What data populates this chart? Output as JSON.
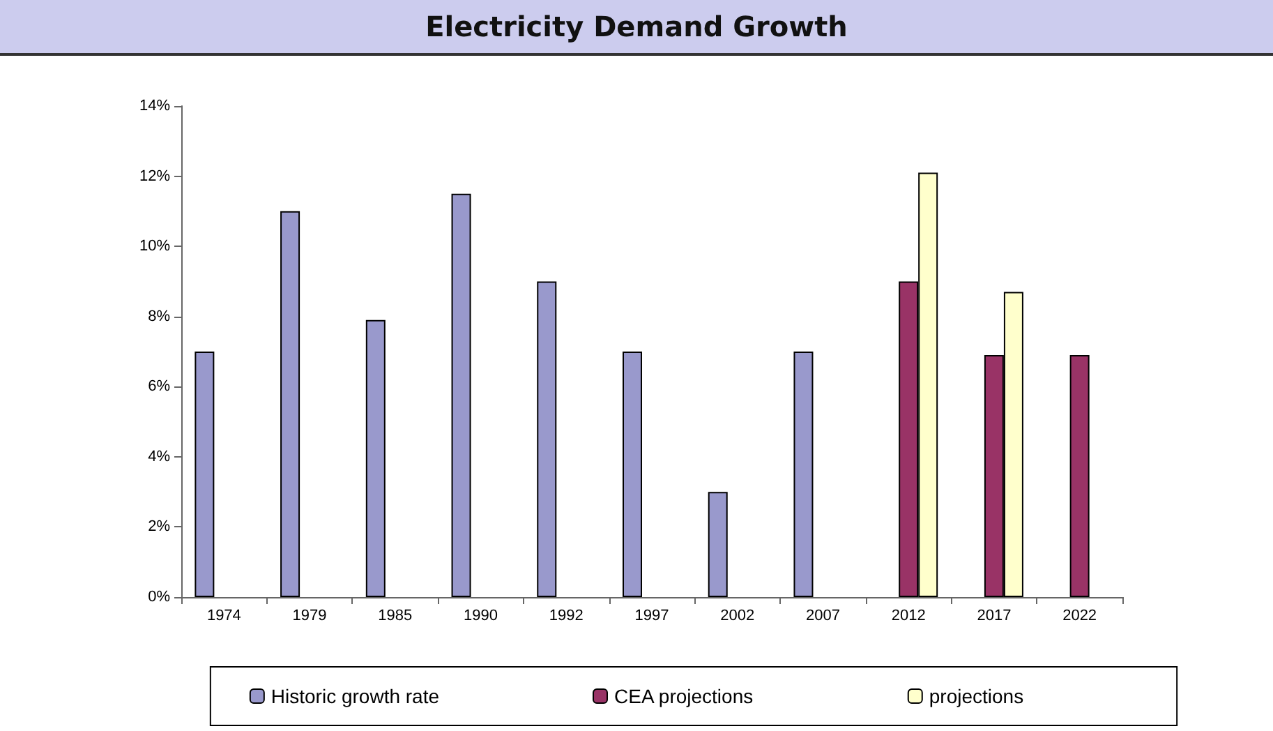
{
  "chart_data": {
    "type": "bar",
    "title": "Electricity Demand Growth",
    "categories": [
      "1974",
      "1979",
      "1985",
      "1990",
      "1992",
      "1997",
      "2002",
      "2007",
      "2012",
      "2017",
      "2022"
    ],
    "series": [
      {
        "name": "Historic growth rate",
        "color": "#9999cc",
        "values": [
          7,
          11,
          7.9,
          11.5,
          9,
          7,
          3,
          7,
          null,
          null,
          null
        ]
      },
      {
        "name": "CEA projections",
        "color": "#993366",
        "values": [
          null,
          null,
          null,
          null,
          null,
          null,
          null,
          null,
          9,
          6.9,
          6.9
        ]
      },
      {
        "name": "projections",
        "color": "#ffffcc",
        "values": [
          null,
          null,
          null,
          null,
          null,
          null,
          null,
          null,
          12.1,
          8.7,
          null
        ]
      }
    ],
    "ylim": [
      0,
      14
    ],
    "yticks": [
      {
        "value": 0,
        "label": "0%"
      },
      {
        "value": 2,
        "label": "2%"
      },
      {
        "value": 4,
        "label": "4%"
      },
      {
        "value": 6,
        "label": "6%"
      },
      {
        "value": 8,
        "label": "8%"
      },
      {
        "value": 10,
        "label": "10%"
      },
      {
        "value": 12,
        "label": "12%"
      },
      {
        "value": 14,
        "label": "14%"
      }
    ],
    "grid": false,
    "legend": "bottom"
  }
}
